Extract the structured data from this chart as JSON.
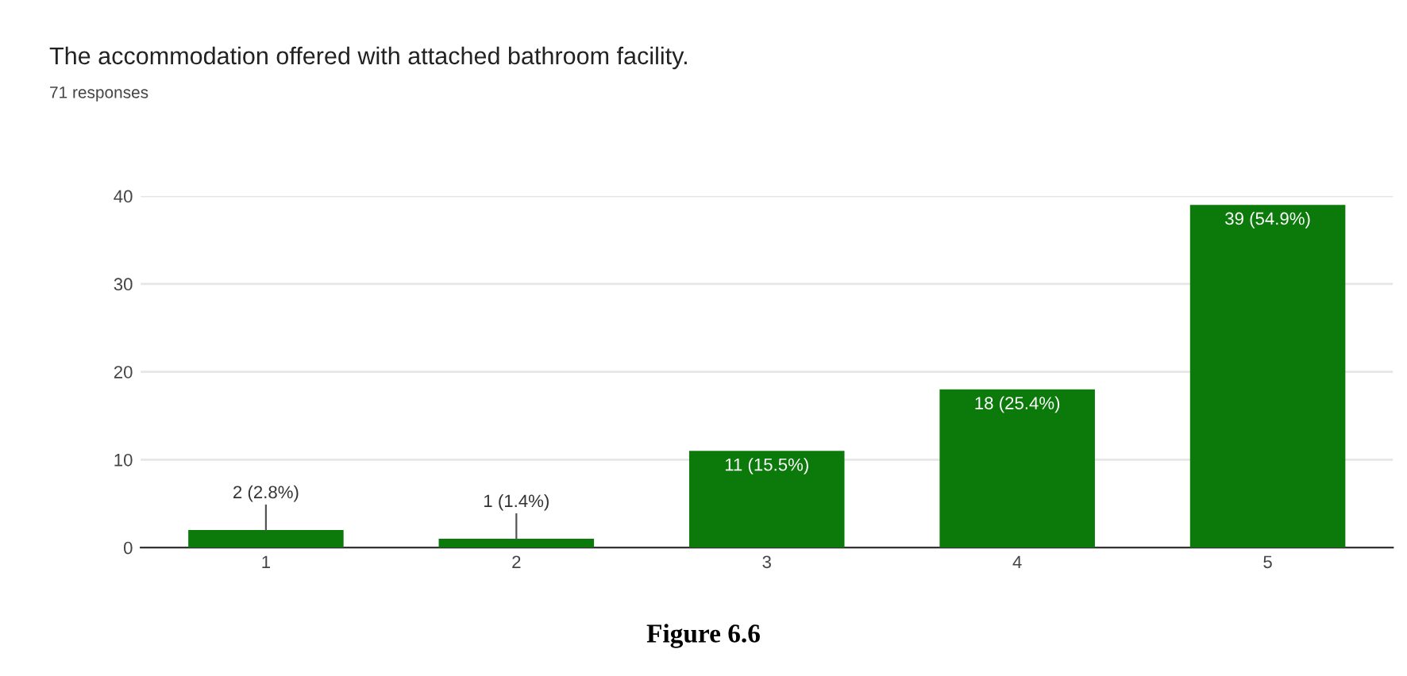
{
  "chart_data": {
    "type": "bar",
    "title": "The accommodation offered with attached bathroom facility.",
    "subtitle": "71 responses",
    "categories": [
      "1",
      "2",
      "3",
      "4",
      "5"
    ],
    "values": [
      2,
      1,
      11,
      18,
      39
    ],
    "value_labels": [
      "2 (2.8%)",
      "1 (1.4%)",
      "11 (15.5%)",
      "18 (25.4%)",
      "39 (54.9%)"
    ],
    "color": "#0b7a0b",
    "ylim": [
      0,
      40
    ],
    "yticks": [
      0,
      10,
      20,
      30,
      40
    ],
    "grid": "y",
    "annotations": [
      "Figure 6.6"
    ]
  }
}
